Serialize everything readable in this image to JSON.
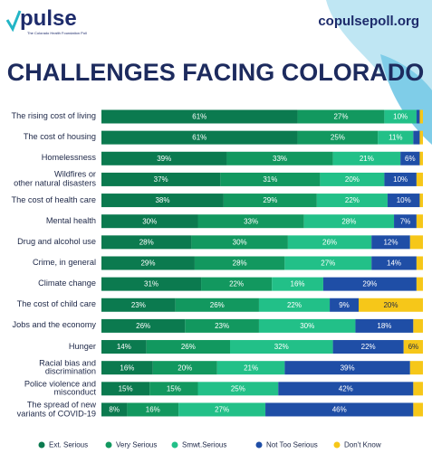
{
  "header": {
    "logo": "pulse",
    "logo_subtitle": "The Colorado Health Foundation Poll",
    "url": "copulsepoll.org"
  },
  "chart_data": {
    "type": "stacked-barh",
    "title": "CHALLENGES FACING COLORADO",
    "categories": [
      "The rising cost of living",
      "The cost of housing",
      "Homelessness",
      "Wildfires or\nother natural disasters",
      "The cost of health care",
      "Mental health",
      "Drug and alcohol use",
      "Crime, in general",
      "Climate change",
      "The cost of child care",
      "Jobs and the economy",
      "Hunger",
      "Racial bias and\ndiscrimination",
      "Police violence and\nmisconduct",
      "The spread of new\nvariants of COVID-19"
    ],
    "xlim": [
      0,
      100
    ],
    "series": [
      {
        "name": "Ext. Serious",
        "color": "#0b7a4f",
        "values": [
          61,
          61,
          39,
          37,
          38,
          30,
          28,
          29,
          31,
          23,
          26,
          14,
          16,
          15,
          8
        ],
        "value_labels": [
          "61%",
          "61%",
          "39%",
          "37%",
          "38%",
          "30%",
          "28%",
          "29%",
          "31%",
          "23%",
          "26%",
          "14%",
          "16%",
          "15%",
          "8%"
        ]
      },
      {
        "name": "Very Serious",
        "color": "#12985f",
        "values": [
          27,
          25,
          33,
          31,
          29,
          33,
          30,
          28,
          22,
          26,
          23,
          26,
          20,
          15,
          16
        ],
        "value_labels": [
          "27%",
          "25%",
          "33%",
          "31%",
          "29%",
          "33%",
          "30%",
          "28%",
          "22%",
          "26%",
          "23%",
          "26%",
          "20%",
          "15%",
          "16%"
        ]
      },
      {
        "name": "Smwt.Serious",
        "color": "#22c088",
        "values": [
          10,
          11,
          21,
          20,
          22,
          28,
          26,
          27,
          16,
          22,
          30,
          32,
          21,
          25,
          27
        ],
        "value_labels": [
          "10%",
          "11%",
          "21%",
          "20%",
          "22%",
          "28%",
          "26%",
          "27%",
          "16%",
          "22%",
          "30%",
          "32%",
          "21%",
          "25%",
          "27%"
        ]
      },
      {
        "name": "Not Too Serious",
        "color": "#1f4ea6",
        "values": [
          1,
          2,
          6,
          10,
          10,
          7,
          12,
          14,
          29,
          9,
          18,
          22,
          39,
          42,
          46
        ],
        "value_labels": [
          null,
          null,
          "6%",
          "10%",
          "10%",
          "7%",
          "12%",
          "14%",
          "29%",
          "9%",
          "18%",
          "22%",
          "39%",
          "42%",
          "46%"
        ]
      },
      {
        "name": "Don't Know",
        "color": "#f6c719",
        "values": [
          1,
          1,
          1,
          2,
          1,
          2,
          4,
          2,
          2,
          20,
          3,
          6,
          4,
          3,
          3
        ],
        "value_labels": [
          null,
          null,
          null,
          null,
          null,
          null,
          null,
          null,
          null,
          "20%",
          null,
          "6%",
          null,
          null,
          null
        ]
      }
    ]
  }
}
